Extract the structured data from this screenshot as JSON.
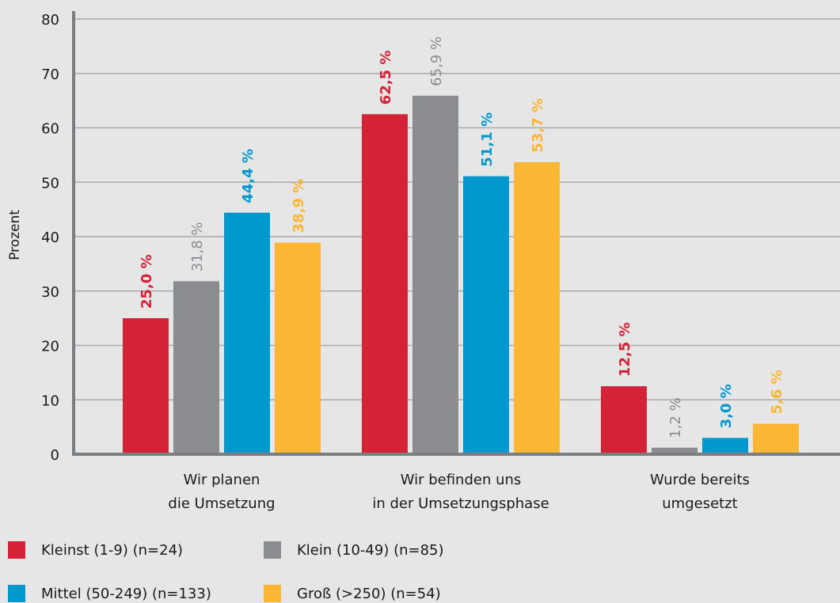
{
  "chart_data": {
    "type": "bar",
    "categories": [
      [
        "Wir planen",
        "die Umsetzung"
      ],
      [
        "Wir befinden uns",
        "in der Umsetzungsphase"
      ],
      [
        "Wurde bereits",
        "umgesetzt"
      ]
    ],
    "series": [
      {
        "name": "Kleinst (1-9) (n=24)",
        "color": "#d42336",
        "values": [
          25.0,
          62.5,
          12.5
        ],
        "labels": [
          "25,0 %",
          "62,5 %",
          "12,5 %"
        ],
        "bold": true
      },
      {
        "name": "Klein (10-49) (n=85)",
        "color": "#8b8c8f",
        "values": [
          31.8,
          65.9,
          1.2
        ],
        "labels": [
          "31,8 %",
          "65,9 %",
          "1,2 %"
        ],
        "bold": false
      },
      {
        "name": "Mittel (50-249) (n=133)",
        "color": "#0098cd",
        "values": [
          44.4,
          51.1,
          3.0
        ],
        "labels": [
          "44,4 %",
          "51,1 %",
          "3,0 %"
        ],
        "bold": true
      },
      {
        "name": "Groß (>250) (n=54)",
        "color": "#fbb733",
        "values": [
          38.9,
          53.7,
          5.6
        ],
        "labels": [
          "38,9 %",
          "53,7 %",
          "5,6 %"
        ],
        "bold": true
      }
    ],
    "ylabel": "Prozent",
    "ylim": [
      0,
      80
    ],
    "yticks": [
      0,
      10,
      20,
      30,
      40,
      50,
      60,
      70,
      80
    ],
    "grid": true,
    "legend_position": "bottom"
  },
  "legend": [
    {
      "label": "Kleinst (1-9) (n=24)",
      "color": "#d42336"
    },
    {
      "label": "Klein (10-49) (n=85)",
      "color": "#8b8c8f"
    },
    {
      "label": "Mittel (50-249) (n=133)",
      "color": "#0098cd"
    },
    {
      "label": "Groß (>250) (n=54)",
      "color": "#fbb733"
    }
  ]
}
